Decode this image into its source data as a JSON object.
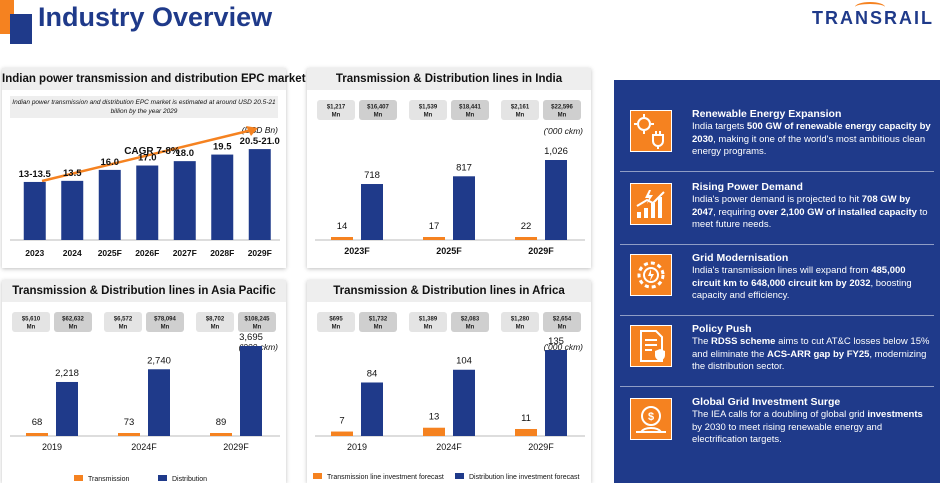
{
  "header": {
    "title": "Industry Overview",
    "logo_text": "TRANSRAIL"
  },
  "colors": {
    "navy": "#1f3a8a",
    "orange": "#f58220"
  },
  "chart_data": [
    {
      "type": "bar",
      "title": "Indian power transmission and distribution EPC market",
      "note": "Indian power transmission and distribution EPC market is estimated at around USD 20.5-21 billion by the year 2029",
      "unit": "(USD Bn)",
      "annotation": "CAGR 7-8%",
      "categories": [
        "2023",
        "2024",
        "2025F",
        "2026F",
        "2027F",
        "2028F",
        "2029F"
      ],
      "values": [
        13.25,
        13.5,
        16.0,
        17.0,
        18.0,
        19.5,
        20.75
      ],
      "value_labels": [
        "13-13.5",
        "13.5",
        "16.0",
        "17.0",
        "18.0",
        "19.5",
        "20.5-21.0"
      ]
    },
    {
      "type": "bar",
      "title": "Transmission & Distribution lines in India",
      "unit": "('000 ckm)",
      "categories": [
        "2023F",
        "2025F",
        "2029F"
      ],
      "badges": [
        [
          "$1,217 Mn",
          "$16,407 Mn"
        ],
        [
          "$1,539 Mn",
          "$18,441 Mn"
        ],
        [
          "$2,161 Mn",
          "$22,596 Mn"
        ]
      ],
      "series": [
        {
          "values": [
            14,
            17,
            22
          ]
        },
        {
          "values": [
            718,
            817,
            1026
          ]
        }
      ],
      "value_labels": [
        [
          "14",
          "17",
          "22"
        ],
        [
          "718",
          "817",
          "1,026"
        ]
      ]
    },
    {
      "type": "bar",
      "title": "Transmission & Distribution lines in Asia Pacific",
      "unit": "('000 ckm)",
      "categories": [
        "2019",
        "2024F",
        "2029F"
      ],
      "badges": [
        [
          "$5,610 Mn",
          "$62,632 Mn"
        ],
        [
          "$6,572 Mn",
          "$78,094 Mn"
        ],
        [
          "$8,702 Mn",
          "$108,245 Mn"
        ]
      ],
      "series": [
        {
          "name": "Transmission",
          "values": [
            68,
            73,
            89
          ]
        },
        {
          "name": "Distribution",
          "values": [
            2218,
            2740,
            3695
          ]
        }
      ],
      "value_labels": [
        [
          "68",
          "73",
          "89"
        ],
        [
          "2,218",
          "2,740",
          "3,695"
        ]
      ]
    },
    {
      "type": "bar",
      "title": "Transmission & Distribution lines in Africa",
      "unit": "('000 ckm)",
      "categories": [
        "2019",
        "2024F",
        "2029F"
      ],
      "badges": [
        [
          "$695 Mn",
          "$1,732 Mn"
        ],
        [
          "$1,389 Mn",
          "$2,083 Mn"
        ],
        [
          "$1,280 Mn",
          "$2,654 Mn"
        ]
      ],
      "series": [
        {
          "name": "Transmission line investment forecast",
          "values": [
            7,
            13,
            11
          ]
        },
        {
          "name": "Distribution line investment forecast",
          "values": [
            84,
            104,
            135
          ]
        }
      ],
      "value_labels": [
        [
          "7",
          "13",
          "11"
        ],
        [
          "84",
          "104",
          "135"
        ]
      ]
    }
  ],
  "highlights": [
    {
      "icon": "solar-plug-icon",
      "title": "Renewable Energy Expansion",
      "body": [
        "India targets ",
        "500 GW of renewable energy capacity by 2030",
        ", making it one of the world's most ambitious clean energy programs."
      ]
    },
    {
      "icon": "rising-chart-icon",
      "title": "Rising Power Demand",
      "body": [
        "India's power demand is projected to hit ",
        "708 GW by 2047",
        ", requiring ",
        "over 2,100 GW of installed capacity",
        " to meet future needs."
      ]
    },
    {
      "icon": "grid-gear-icon",
      "title": "Grid Modernisation",
      "body": [
        "India's transmission lines will expand from ",
        "485,000 circuit km to 648,000 circuit km by 2032",
        ", boosting capacity and efficiency."
      ]
    },
    {
      "icon": "policy-document-icon",
      "title": "Policy Push",
      "body": [
        "The ",
        "RDSS scheme",
        " aims to cut AT&C losses below 15% and eliminate the ",
        "ACS-ARR gap by FY25",
        ", modernizing the distribution sector."
      ]
    },
    {
      "icon": "investment-globe-icon",
      "title": "Global Grid Investment Surge",
      "body": [
        "The IEA calls for a doubling of global grid ",
        "investments",
        " by 2030 to meet rising renewable energy and electrification targets."
      ]
    }
  ]
}
